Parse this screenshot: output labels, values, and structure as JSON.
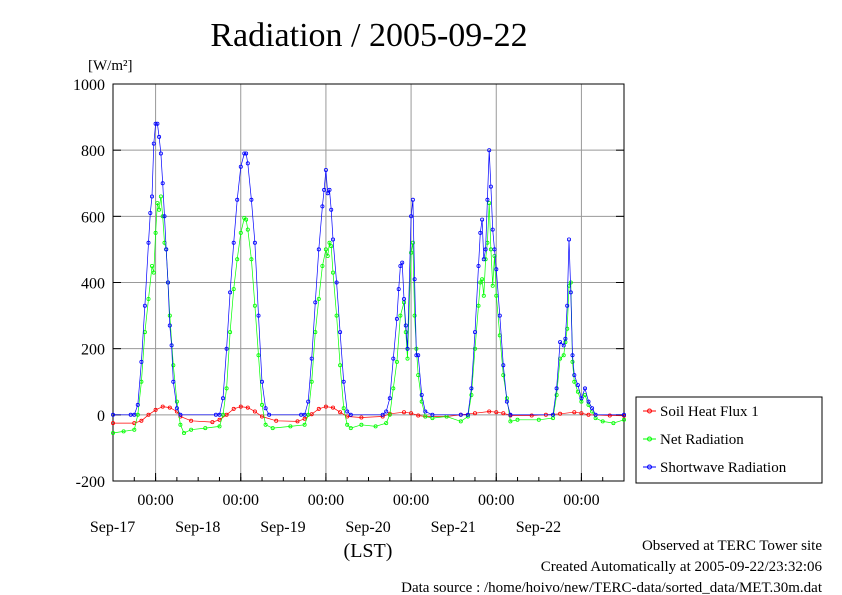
{
  "chart_data": {
    "type": "line",
    "title": "Radiation / 2005-09-22",
    "ylabel_unit": "[W/m²]",
    "xlabel": "(LST)",
    "ylim": [
      -200,
      1000
    ],
    "yticks": [
      -200,
      0,
      200,
      400,
      600,
      800,
      1000
    ],
    "grid": true,
    "legend_position": "right-bottom",
    "x_unit": "hours from Sep-16 12:00 LST",
    "xlim": [
      0,
      144
    ],
    "xticks": [
      {
        "x": 12,
        "time": "00:00",
        "date": "Sep-17"
      },
      {
        "x": 36,
        "time": "00:00",
        "date": "Sep-18"
      },
      {
        "x": 60,
        "time": "00:00",
        "date": "Sep-19"
      },
      {
        "x": 84,
        "time": "00:00",
        "date": "Sep-20"
      },
      {
        "x": 108,
        "time": "00:00",
        "date": "Sep-21"
      },
      {
        "x": 132,
        "time": "00:00",
        "date": "Sep-22"
      }
    ],
    "series": [
      {
        "name": "Soil Heat Flux 1",
        "color": "#ff0000",
        "points": [
          [
            0,
            -25
          ],
          [
            6,
            -25
          ],
          [
            8,
            -18
          ],
          [
            10,
            0
          ],
          [
            12,
            15
          ],
          [
            14,
            25
          ],
          [
            16,
            22
          ],
          [
            18,
            10
          ],
          [
            19,
            -5
          ],
          [
            22,
            -18
          ],
          [
            28,
            -22
          ],
          [
            30,
            -15
          ],
          [
            32,
            0
          ],
          [
            34,
            18
          ],
          [
            36,
            25
          ],
          [
            38,
            22
          ],
          [
            40,
            10
          ],
          [
            42,
            -5
          ],
          [
            46,
            -18
          ],
          [
            52,
            -20
          ],
          [
            54,
            -12
          ],
          [
            56,
            2
          ],
          [
            58,
            18
          ],
          [
            60,
            25
          ],
          [
            62,
            22
          ],
          [
            64,
            8
          ],
          [
            66,
            -5
          ],
          [
            70,
            -8
          ],
          [
            76,
            -5
          ],
          [
            78,
            3
          ],
          [
            82,
            8
          ],
          [
            84,
            5
          ],
          [
            86,
            -2
          ],
          [
            88,
            -5
          ],
          [
            94,
            -5
          ],
          [
            98,
            0
          ],
          [
            102,
            5
          ],
          [
            106,
            10
          ],
          [
            108,
            8
          ],
          [
            110,
            5
          ],
          [
            112,
            -2
          ],
          [
            118,
            -2
          ],
          [
            122,
            0
          ],
          [
            126,
            3
          ],
          [
            130,
            8
          ],
          [
            132,
            5
          ],
          [
            134,
            0
          ],
          [
            140,
            -2
          ],
          [
            144,
            -3
          ]
        ]
      },
      {
        "name": "Net Radiation",
        "color": "#00ff00",
        "points": [
          [
            0,
            -55
          ],
          [
            3,
            -50
          ],
          [
            6,
            -45
          ],
          [
            7,
            0
          ],
          [
            8,
            100
          ],
          [
            9,
            250
          ],
          [
            10,
            350
          ],
          [
            11,
            450
          ],
          [
            11.5,
            430
          ],
          [
            12,
            550
          ],
          [
            12.5,
            640
          ],
          [
            13,
            620
          ],
          [
            13.5,
            660
          ],
          [
            14,
            600
          ],
          [
            14.5,
            520
          ],
          [
            15,
            500
          ],
          [
            15.5,
            400
          ],
          [
            16,
            300
          ],
          [
            17,
            150
          ],
          [
            18,
            40
          ],
          [
            19,
            -30
          ],
          [
            20,
            -55
          ],
          [
            22,
            -45
          ],
          [
            26,
            -40
          ],
          [
            30,
            -35
          ],
          [
            31,
            0
          ],
          [
            32,
            80
          ],
          [
            33,
            250
          ],
          [
            34,
            380
          ],
          [
            35,
            470
          ],
          [
            36,
            550
          ],
          [
            37,
            595
          ],
          [
            37.5,
            590
          ],
          [
            38,
            560
          ],
          [
            39,
            470
          ],
          [
            40,
            330
          ],
          [
            41,
            180
          ],
          [
            42,
            30
          ],
          [
            43,
            -30
          ],
          [
            45,
            -40
          ],
          [
            50,
            -35
          ],
          [
            54,
            -30
          ],
          [
            55,
            0
          ],
          [
            56,
            100
          ],
          [
            57,
            250
          ],
          [
            58,
            350
          ],
          [
            59,
            450
          ],
          [
            60,
            500
          ],
          [
            60.5,
            480
          ],
          [
            61,
            520
          ],
          [
            61.5,
            510
          ],
          [
            62,
            430
          ],
          [
            63,
            300
          ],
          [
            64,
            150
          ],
          [
            65,
            20
          ],
          [
            66,
            -30
          ],
          [
            67,
            -40
          ],
          [
            70,
            -30
          ],
          [
            74,
            -35
          ],
          [
            77,
            -25
          ],
          [
            78,
            0
          ],
          [
            79,
            80
          ],
          [
            80,
            160
          ],
          [
            81,
            300
          ],
          [
            82,
            340
          ],
          [
            82.5,
            250
          ],
          [
            83,
            170
          ],
          [
            84,
            490
          ],
          [
            84.5,
            520
          ],
          [
            85,
            300
          ],
          [
            85.5,
            200
          ],
          [
            86,
            120
          ],
          [
            87,
            40
          ],
          [
            88,
            -5
          ],
          [
            90,
            -10
          ],
          [
            94,
            -5
          ],
          [
            98,
            -20
          ],
          [
            100,
            -5
          ],
          [
            101,
            60
          ],
          [
            102,
            200
          ],
          [
            103,
            330
          ],
          [
            103.5,
            400
          ],
          [
            104,
            410
          ],
          [
            104.5,
            360
          ],
          [
            105,
            470
          ],
          [
            105.5,
            520
          ],
          [
            106,
            640
          ],
          [
            106.5,
            500
          ],
          [
            107,
            390
          ],
          [
            107.5,
            480
          ],
          [
            108,
            360
          ],
          [
            109,
            240
          ],
          [
            110,
            120
          ],
          [
            111,
            50
          ],
          [
            112,
            -20
          ],
          [
            114,
            -15
          ],
          [
            120,
            -15
          ],
          [
            124,
            -10
          ],
          [
            125,
            60
          ],
          [
            126,
            170
          ],
          [
            127,
            180
          ],
          [
            127.5,
            220
          ],
          [
            128,
            260
          ],
          [
            128.5,
            390
          ],
          [
            129,
            400
          ],
          [
            129.5,
            160
          ],
          [
            130,
            100
          ],
          [
            131,
            70
          ],
          [
            132,
            40
          ],
          [
            133,
            60
          ],
          [
            134,
            30
          ],
          [
            135,
            10
          ],
          [
            136,
            -10
          ],
          [
            138,
            -20
          ],
          [
            141,
            -25
          ],
          [
            144,
            -15
          ]
        ]
      },
      {
        "name": "Shortwave Radiation",
        "color": "#0000ff",
        "points": [
          [
            0,
            0
          ],
          [
            5,
            0
          ],
          [
            6,
            0
          ],
          [
            7,
            30
          ],
          [
            8,
            160
          ],
          [
            9,
            330
          ],
          [
            10,
            520
          ],
          [
            10.5,
            610
          ],
          [
            11,
            660
          ],
          [
            11.5,
            820
          ],
          [
            12,
            880
          ],
          [
            12.5,
            880
          ],
          [
            13,
            840
          ],
          [
            13.5,
            790
          ],
          [
            14,
            700
          ],
          [
            14.5,
            600
          ],
          [
            15,
            500
          ],
          [
            15.5,
            400
          ],
          [
            16,
            270
          ],
          [
            16.5,
            210
          ],
          [
            17,
            100
          ],
          [
            18,
            20
          ],
          [
            19,
            0
          ],
          [
            29,
            0
          ],
          [
            30,
            0
          ],
          [
            31,
            50
          ],
          [
            32,
            200
          ],
          [
            33,
            370
          ],
          [
            34,
            520
          ],
          [
            35,
            650
          ],
          [
            36,
            750
          ],
          [
            37,
            790
          ],
          [
            37.5,
            790
          ],
          [
            38,
            760
          ],
          [
            39,
            650
          ],
          [
            40,
            520
          ],
          [
            41,
            300
          ],
          [
            42,
            100
          ],
          [
            43,
            20
          ],
          [
            44,
            0
          ],
          [
            53,
            0
          ],
          [
            54,
            0
          ],
          [
            55,
            40
          ],
          [
            56,
            170
          ],
          [
            57,
            340
          ],
          [
            58,
            500
          ],
          [
            59,
            630
          ],
          [
            59.5,
            680
          ],
          [
            60,
            740
          ],
          [
            60.5,
            670
          ],
          [
            61,
            680
          ],
          [
            61.5,
            620
          ],
          [
            62,
            530
          ],
          [
            63,
            400
          ],
          [
            64,
            250
          ],
          [
            65,
            100
          ],
          [
            66,
            10
          ],
          [
            67,
            0
          ],
          [
            76,
            0
          ],
          [
            77,
            10
          ],
          [
            78,
            50
          ],
          [
            79,
            170
          ],
          [
            80,
            290
          ],
          [
            80.5,
            380
          ],
          [
            81,
            450
          ],
          [
            81.5,
            460
          ],
          [
            82,
            350
          ],
          [
            82.5,
            270
          ],
          [
            83,
            200
          ],
          [
            84,
            600
          ],
          [
            84.5,
            650
          ],
          [
            85,
            410
          ],
          [
            85.5,
            180
          ],
          [
            86,
            180
          ],
          [
            87,
            60
          ],
          [
            88,
            10
          ],
          [
            90,
            0
          ],
          [
            98,
            0
          ],
          [
            100,
            0
          ],
          [
            101,
            80
          ],
          [
            102,
            250
          ],
          [
            103,
            450
          ],
          [
            103.5,
            550
          ],
          [
            104,
            590
          ],
          [
            104.5,
            470
          ],
          [
            105,
            500
          ],
          [
            105.5,
            650
          ],
          [
            106,
            800
          ],
          [
            106.5,
            690
          ],
          [
            107,
            560
          ],
          [
            107.5,
            500
          ],
          [
            108,
            440
          ],
          [
            109,
            300
          ],
          [
            110,
            150
          ],
          [
            111,
            40
          ],
          [
            112,
            0
          ],
          [
            124,
            0
          ],
          [
            125,
            80
          ],
          [
            126,
            220
          ],
          [
            127,
            210
          ],
          [
            127.5,
            230
          ],
          [
            128,
            330
          ],
          [
            128.5,
            530
          ],
          [
            129,
            370
          ],
          [
            129.5,
            180
          ],
          [
            130,
            120
          ],
          [
            131,
            90
          ],
          [
            132,
            50
          ],
          [
            133,
            80
          ],
          [
            134,
            40
          ],
          [
            135,
            20
          ],
          [
            136,
            0
          ],
          [
            144,
            0
          ]
        ]
      }
    ],
    "footer_lines": [
      "Observed at TERC Tower site",
      "Created Automatically at 2005-09-22/23:32:06",
      "Data source : /home/hoivo/new/TERC-data/sorted_data/MET.30m.dat"
    ]
  }
}
